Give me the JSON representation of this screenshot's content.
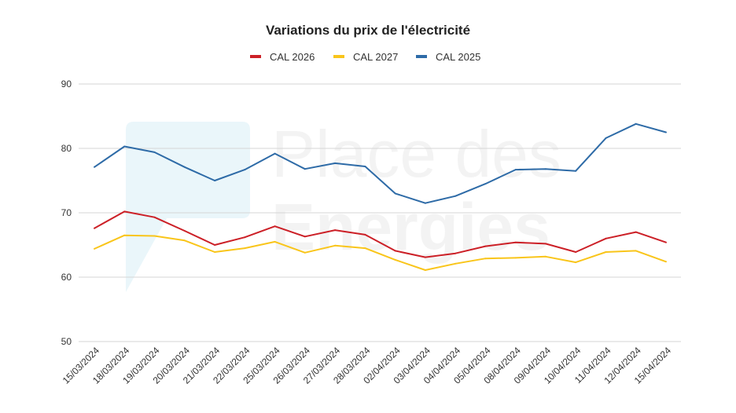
{
  "chart_data": {
    "type": "line",
    "title": "Variations du prix de l'électricité",
    "xlabel": "",
    "ylabel": "",
    "categories": [
      "15/03/2024",
      "18/03/2024",
      "19/03/2024",
      "20/03/2024",
      "21/03/2024",
      "22/03/2024",
      "25/03/2024",
      "26/03/2024",
      "27/03/2024",
      "28/03/2024",
      "02/04/2024",
      "03/04/2024",
      "04/04/2024",
      "05/04/2024",
      "08/04/2024",
      "09/04/2024",
      "10/04/2024",
      "11/04/2024",
      "12/04/2024",
      "15/04/2024"
    ],
    "ylim": [
      50,
      90
    ],
    "yticks": [
      50,
      60,
      70,
      80,
      90
    ],
    "grid": true,
    "legend_position": "top",
    "series": [
      {
        "name": "CAL 2026",
        "color": "#cc2027",
        "values": [
          67.6,
          70.2,
          69.3,
          67.2,
          65.0,
          66.2,
          67.9,
          66.3,
          67.3,
          66.6,
          64.1,
          63.1,
          63.7,
          64.8,
          65.4,
          65.2,
          63.9,
          66.0,
          67.0,
          65.4
        ]
      },
      {
        "name": "CAL 2027",
        "color": "#f9c51a",
        "values": [
          64.4,
          66.5,
          66.4,
          65.7,
          63.9,
          64.5,
          65.5,
          63.8,
          64.9,
          64.5,
          62.7,
          61.1,
          62.1,
          62.9,
          63.0,
          63.2,
          62.3,
          63.9,
          64.1,
          62.4
        ]
      },
      {
        "name": "CAL 2025",
        "color": "#2e6ba7",
        "values": [
          77.1,
          80.3,
          79.4,
          77.1,
          75.0,
          76.7,
          79.2,
          76.8,
          77.7,
          77.2,
          73.0,
          71.5,
          72.6,
          74.5,
          76.7,
          76.8,
          76.5,
          81.6,
          83.8,
          82.5
        ]
      }
    ]
  },
  "watermark": {
    "line1": "Place des",
    "line2": "Energies"
  },
  "colors": {
    "grid": "#d6d6d6",
    "watermark_logo": "#e3f3f8"
  }
}
